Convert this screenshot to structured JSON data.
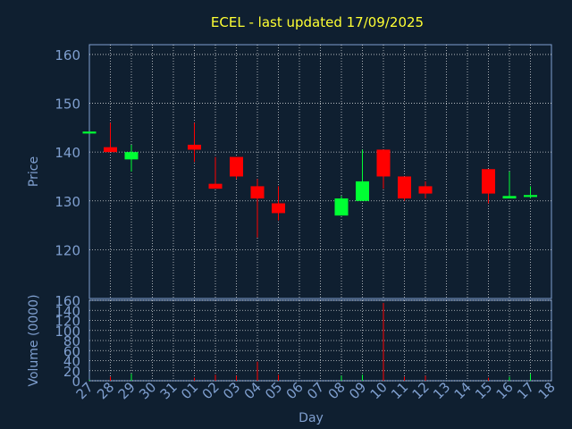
{
  "colors": {
    "background": "#0f1f30",
    "title": "#ffff33",
    "axis_text": "#7f9fcf",
    "grid": "#ffffff",
    "up": "#00ff33",
    "down": "#ff0000"
  },
  "chart_data": {
    "type": "candlestick",
    "title": "ECEL - last updated 17/09/2025",
    "xlabel": "Day",
    "ylabel": "Price",
    "volume_label": "Volume (0000)",
    "ylim": [
      110,
      162
    ],
    "volume_ylim": [
      0,
      160
    ],
    "price_ticks": [
      "120",
      "130",
      "140",
      "150",
      "160"
    ],
    "volume_ticks": [
      "0",
      "20",
      "40",
      "60",
      "80",
      "100",
      "120",
      "140",
      "160"
    ],
    "days": [
      "27",
      "28",
      "29",
      "30",
      "31",
      "01",
      "02",
      "03",
      "04",
      "05",
      "06",
      "07",
      "08",
      "09",
      "10",
      "11",
      "12",
      "13",
      "14",
      "15",
      "16",
      "17",
      "18"
    ],
    "candles": [
      {
        "day": "27",
        "open": 143.8,
        "high": 144.2,
        "low": 143.8,
        "close": 144.2,
        "volume": 2
      },
      {
        "day": "28",
        "open": 141.0,
        "high": 146.0,
        "low": 140.0,
        "close": 140.0,
        "volume": 8
      },
      {
        "day": "29",
        "open": 138.5,
        "high": 141.5,
        "low": 136.0,
        "close": 140.0,
        "volume": 14
      },
      {
        "day": "01",
        "open": 141.5,
        "high": 146.0,
        "low": 138.0,
        "close": 140.5,
        "volume": 6
      },
      {
        "day": "02",
        "open": 133.5,
        "high": 139.0,
        "low": 132.5,
        "close": 132.5,
        "volume": 12
      },
      {
        "day": "03",
        "open": 139.0,
        "high": 139.0,
        "low": 134.5,
        "close": 135.0,
        "volume": 10
      },
      {
        "day": "04",
        "open": 133.0,
        "high": 134.5,
        "low": 122.5,
        "close": 130.5,
        "volume": 38
      },
      {
        "day": "05",
        "open": 129.5,
        "high": 133.0,
        "low": 126.0,
        "close": 127.5,
        "volume": 12
      },
      {
        "day": "08",
        "open": 127.0,
        "high": 131.0,
        "low": 127.0,
        "close": 130.5,
        "volume": 10
      },
      {
        "day": "09",
        "open": 130.0,
        "high": 140.5,
        "low": 130.0,
        "close": 134.0,
        "volume": 12
      },
      {
        "day": "10",
        "open": 140.5,
        "high": 140.5,
        "low": 132.5,
        "close": 135.0,
        "volume": 155
      },
      {
        "day": "11",
        "open": 135.0,
        "high": 135.0,
        "low": 130.0,
        "close": 130.5,
        "volume": 8
      },
      {
        "day": "12",
        "open": 133.0,
        "high": 134.0,
        "low": 130.5,
        "close": 131.5,
        "volume": 10
      },
      {
        "day": "15",
        "open": 136.5,
        "high": 136.5,
        "low": 129.5,
        "close": 131.5,
        "volume": 6
      },
      {
        "day": "16",
        "open": 130.5,
        "high": 136.0,
        "low": 130.5,
        "close": 131.0,
        "volume": 8
      },
      {
        "day": "17",
        "open": 130.8,
        "high": 133.0,
        "low": 130.5,
        "close": 131.2,
        "volume": 14
      }
    ]
  }
}
